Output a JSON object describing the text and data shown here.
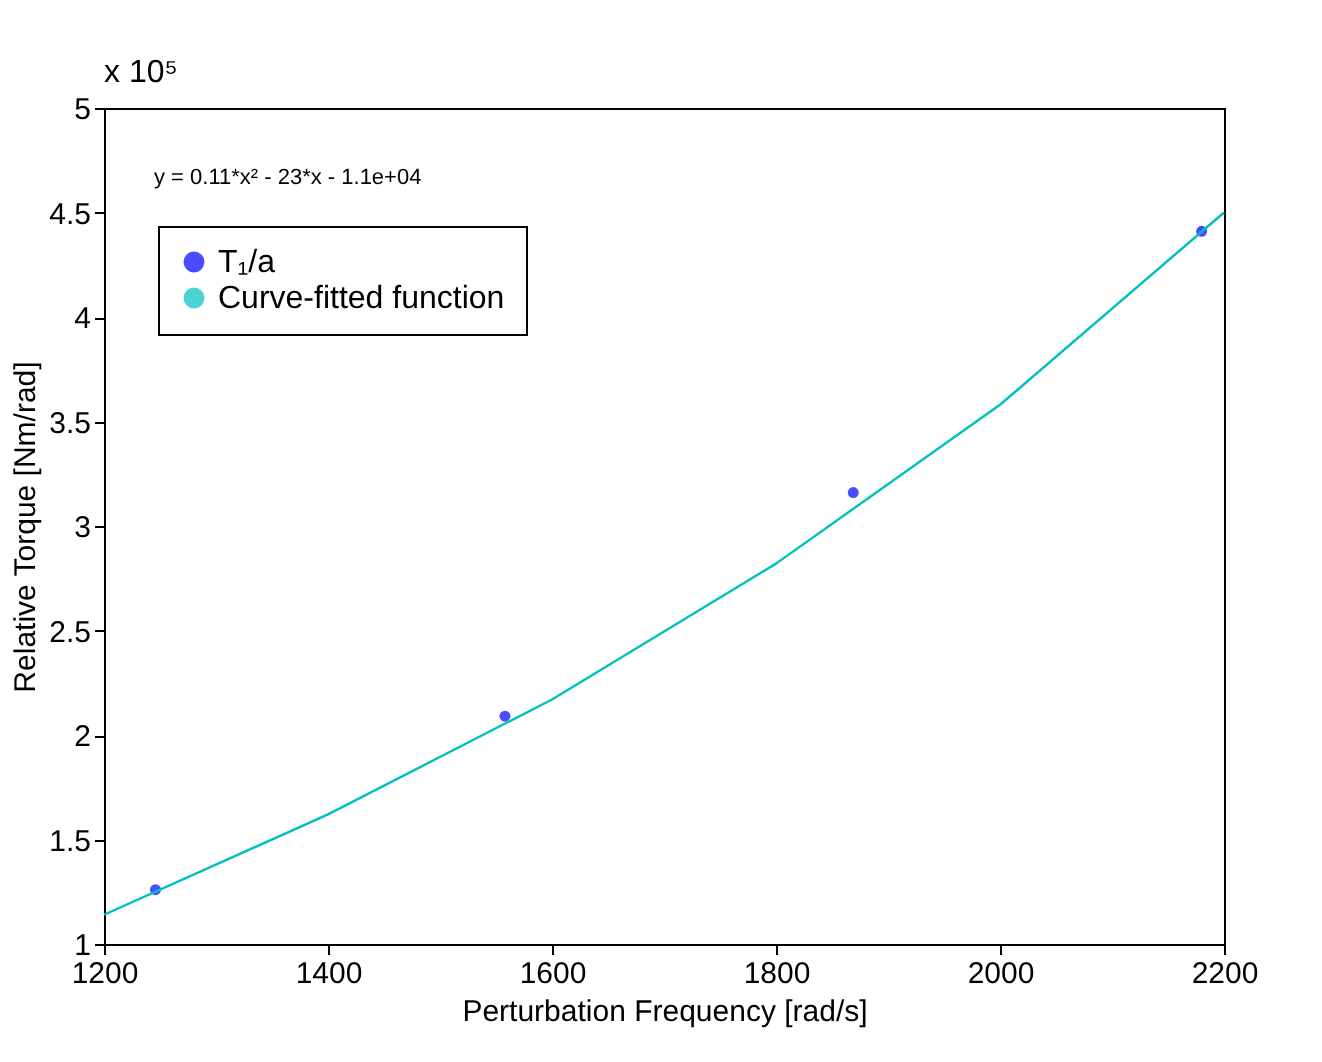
{
  "chart_data": {
    "type": "scatter",
    "xlabel": "Perturbation Frequency [rad/s]",
    "ylabel": "Relative Torque [Nm/rad]",
    "annotations": [
      "x 10⁵",
      "y = 0.11*x² - 23*x - 1.1e+04"
    ],
    "xlim": [
      1200,
      2200
    ],
    "xticks": [
      1200,
      1400,
      1600,
      1800,
      2000,
      2200
    ],
    "ylim": [
      1,
      5
    ],
    "yticks": [
      1,
      1.5,
      2,
      2.5,
      3,
      3.5,
      4,
      4.5,
      5
    ],
    "grid": false,
    "legend": "top left",
    "series": [
      {
        "name": "T₁/a",
        "marker": "circle",
        "color": "#0000ff",
        "x": [
          1246,
          1558,
          1869,
          2180
        ],
        "values": [
          1.26,
          2.09,
          3.16,
          4.41
        ]
      },
      {
        "name": "Curve-fitted function",
        "type": "line",
        "marker": "none",
        "line_style": "solid",
        "color": "#00bfbf",
        "x": [
          1200,
          1400,
          1600,
          1800,
          2000,
          2200
        ],
        "values": [
          1.14,
          1.62,
          2.17,
          2.82,
          3.58,
          4.5
        ]
      }
    ]
  }
}
